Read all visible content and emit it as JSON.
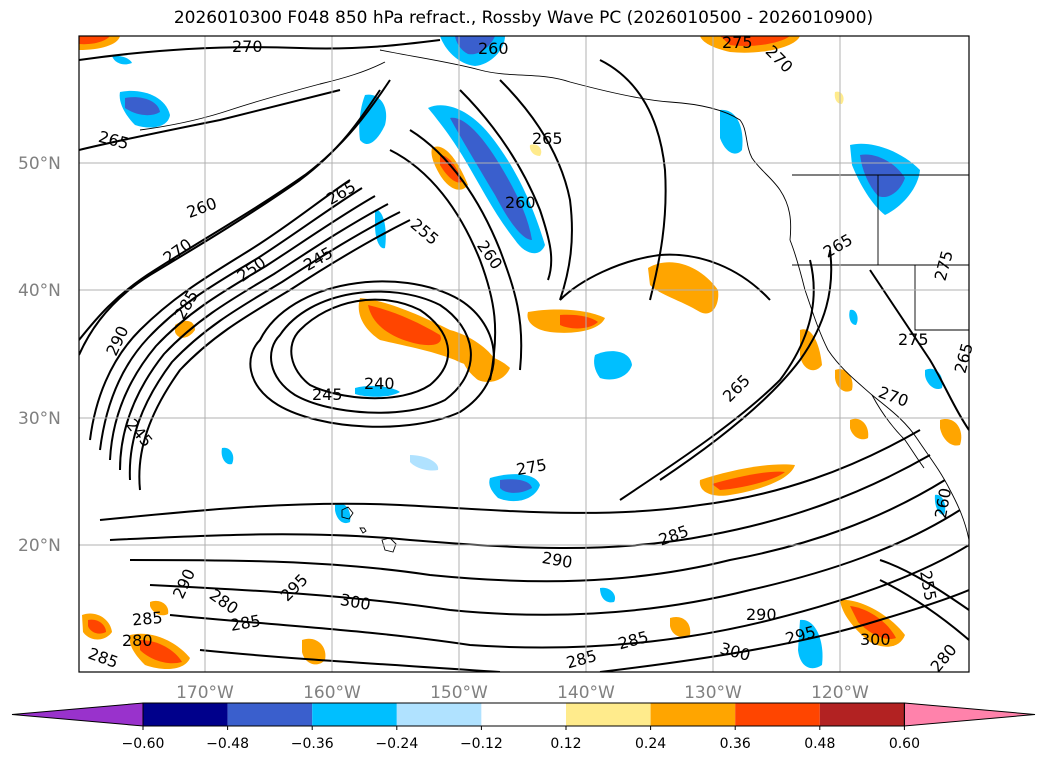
{
  "title": "2026010300 F048 850 hPa refract., Rossby Wave PC (2026010500 - 2026010900)",
  "map": {
    "lat_labels": [
      "50°N",
      "40°N",
      "30°N",
      "20°N"
    ],
    "lon_labels": [
      "170°W",
      "160°W",
      "150°W",
      "140°W",
      "130°W",
      "120°W"
    ],
    "gridlines": true,
    "coastline_color": "#000000"
  },
  "contour_labels": [
    "270",
    "260",
    "275",
    "270",
    "265",
    "265",
    "260",
    "260",
    "265",
    "270",
    "250",
    "245",
    "255",
    "260",
    "285",
    "290",
    "245",
    "240",
    "245",
    "265",
    "265",
    "275",
    "275",
    "265",
    "270",
    "275",
    "285",
    "290",
    "290",
    "260",
    "255",
    "280",
    "285",
    "285",
    "280",
    "285",
    "295",
    "300",
    "285",
    "285",
    "290",
    "295",
    "300",
    "300",
    "280"
  ],
  "colorbar": {
    "tick_labels": [
      "−0.60",
      "−0.48",
      "−0.36",
      "−0.24",
      "−0.12",
      "0.12",
      "0.24",
      "0.36",
      "0.48",
      "0.60"
    ],
    "colors": [
      "#9932cc",
      "#00008b",
      "#3a5fcd",
      "#00bfff",
      "#b0e2ff",
      "#ffffff",
      "#ffeb8c",
      "#ffa500",
      "#ff4500",
      "#b22222",
      "#ff82ab"
    ],
    "extend": "both"
  }
}
